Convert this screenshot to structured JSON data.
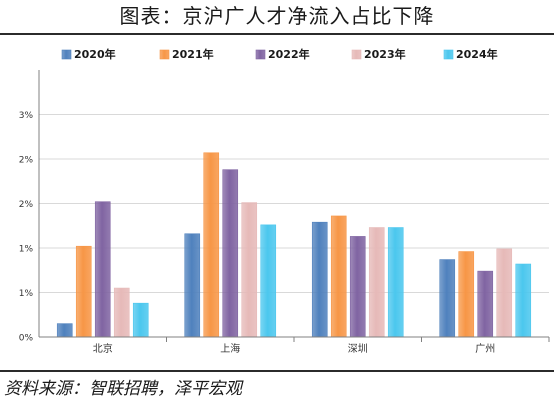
{
  "header": {
    "title": "图表：京沪广人才净流入占比下降"
  },
  "footer": {
    "source": "资料来源：智联招聘，泽平宏观"
  },
  "colors": {
    "2020": "#4f81bd",
    "2021": "#f79646",
    "2022": "#8064a2",
    "2023": "#e6b9b8",
    "2024": "#4bc7ee",
    "grid": "#d9d9d9",
    "axis": "#808080"
  },
  "chart_data": {
    "type": "bar",
    "categories": [
      "北京",
      "上海",
      "深圳",
      "广州"
    ],
    "series": [
      {
        "name": "2020年",
        "values": [
          0.15,
          1.16,
          1.29,
          0.87
        ]
      },
      {
        "name": "2021年",
        "values": [
          1.02,
          2.07,
          1.36,
          0.96
        ]
      },
      {
        "name": "2022年",
        "values": [
          1.52,
          1.88,
          1.13,
          0.74
        ]
      },
      {
        "name": "2023年",
        "values": [
          0.55,
          1.51,
          1.23,
          0.99
        ]
      },
      {
        "name": "2024年",
        "values": [
          0.38,
          1.26,
          1.23,
          0.82
        ]
      }
    ],
    "ylim": [
      0,
      3
    ],
    "yticks": [
      {
        "value": 0,
        "label": "0%"
      },
      {
        "value": 0.5,
        "label": "1%"
      },
      {
        "value": 1.0,
        "label": "1%"
      },
      {
        "value": 1.5,
        "label": "2%"
      },
      {
        "value": 2.0,
        "label": "2%"
      },
      {
        "value": 2.5,
        "label": "3%"
      }
    ],
    "grid": true,
    "legend": "top"
  }
}
